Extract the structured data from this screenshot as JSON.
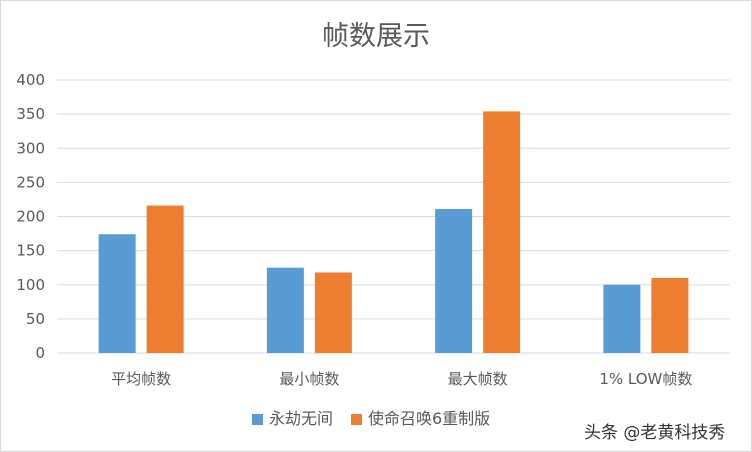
{
  "chart_data": {
    "type": "bar",
    "title": "帧数展示",
    "categories": [
      "平均帧数",
      "最小帧数",
      "最大帧数",
      "1% LOW帧数"
    ],
    "series": [
      {
        "name": "永劫无间",
        "values": [
          174,
          125,
          211,
          100
        ],
        "color": "#5b9bd5"
      },
      {
        "name": "使命召唤6重制版",
        "values": [
          216,
          118,
          354,
          110
        ],
        "color": "#ed7d31"
      }
    ],
    "yticks": [
      0,
      50,
      100,
      150,
      200,
      250,
      300,
      350,
      400
    ],
    "ylim": [
      0,
      400
    ],
    "grid": true,
    "legend_position": "bottom"
  },
  "watermark": "头条 @老黄科技秀"
}
